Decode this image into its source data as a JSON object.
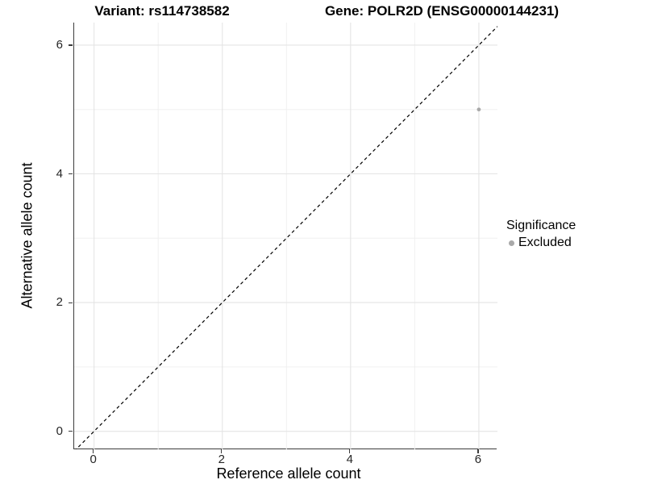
{
  "titles": {
    "variant": "Variant: rs114738582",
    "gene": "Gene: POLR2D (ENSG00000144231)"
  },
  "x_axis": {
    "label": "Reference allele count",
    "tick_labels": [
      "0",
      "2",
      "4",
      "6"
    ]
  },
  "y_axis": {
    "label": "Alternative allele count",
    "tick_labels": [
      "0",
      "2",
      "4",
      "6"
    ]
  },
  "legend": {
    "title": "Significance",
    "items": [
      {
        "label": "Excluded",
        "color": "#a9a9a9"
      }
    ]
  },
  "colors": {
    "background": "#ffffff",
    "grid_major": "#e4e4e4",
    "grid_minor": "#f0f0f0",
    "axis_line": "#3c3c3c",
    "tick_label": "#262626",
    "point": "#a9a9a9",
    "reference_line": "#000000"
  },
  "chart_data": {
    "type": "scatter",
    "title": "Variant: rs114738582 / Gene: POLR2D (ENSG00000144231)",
    "xlabel": "Reference allele count",
    "ylabel": "Alternative allele count",
    "xlim": [
      -0.31,
      6.29
    ],
    "ylim": [
      -0.28,
      6.35
    ],
    "x_ticks": [
      0,
      2,
      4,
      6
    ],
    "y_ticks": [
      0,
      2,
      4,
      6
    ],
    "x_minor_ticks": [
      1,
      3,
      5
    ],
    "y_minor_ticks": [
      1,
      3,
      5
    ],
    "grid": "on",
    "legend_position": "right",
    "series": [
      {
        "name": "Excluded",
        "color": "#a9a9a9",
        "points": [
          {
            "x": 6,
            "y": 5
          }
        ]
      }
    ],
    "reference_line": {
      "slope": 1,
      "intercept": 0,
      "style": "dashed",
      "color": "#000000"
    }
  }
}
